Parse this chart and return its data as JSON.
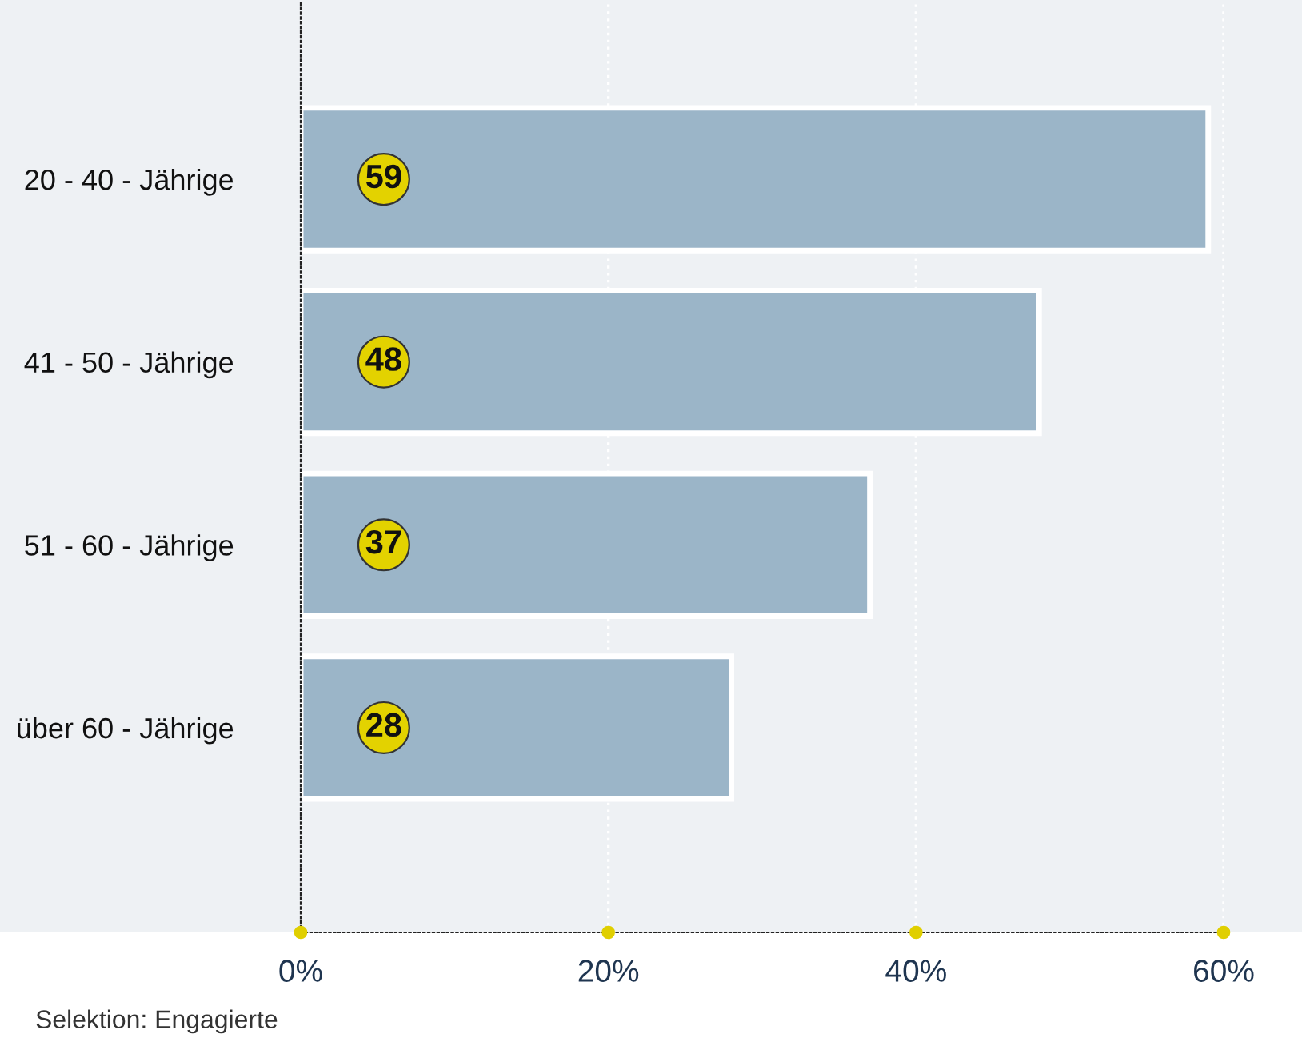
{
  "chart_data": {
    "type": "bar",
    "orientation": "horizontal",
    "categories": [
      "20 - 40 - Jährige",
      "41 - 50 - Jährige",
      "51 - 60 - Jährige",
      "über 60 - Jährige"
    ],
    "values": [
      59,
      48,
      37,
      28
    ],
    "color": "#9bb5c8",
    "xlim": [
      0,
      60
    ],
    "xticks": [
      {
        "value": 0,
        "label": "0%"
      },
      {
        "value": 20,
        "label": "20%"
      },
      {
        "value": 40,
        "label": "40%"
      },
      {
        "value": 60,
        "label": "60%"
      }
    ],
    "grid": "x",
    "data_labels": true,
    "annotations": [
      "Selektion: Engagierte"
    ]
  }
}
